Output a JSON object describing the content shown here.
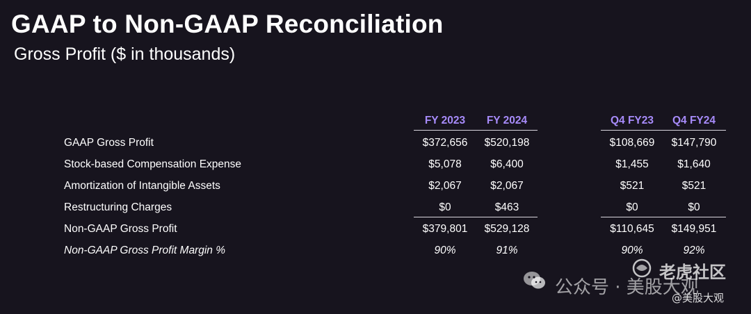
{
  "header": {
    "title": "GAAP to Non-GAAP Reconciliation",
    "subtitle": "Gross Profit ($ in thousands)"
  },
  "columns": [
    "FY 2023",
    "FY 2024",
    "Q4 FY23",
    "Q4 FY24"
  ],
  "rows": [
    {
      "label": "GAAP Gross Profit",
      "values": [
        "$372,656",
        "$520,198",
        "$108,669",
        "$147,790"
      ]
    },
    {
      "label": "Stock-based Compensation Expense",
      "values": [
        "$5,078",
        "$6,400",
        "$1,455",
        "$1,640"
      ]
    },
    {
      "label": "Amortization of Intangible Assets",
      "values": [
        "$2,067",
        "$2,067",
        "$521",
        "$521"
      ]
    },
    {
      "label": "Restructuring Charges",
      "values": [
        "$0",
        "$463",
        "$0",
        "$0"
      ]
    },
    {
      "label": "Non-GAAP Gross Profit",
      "values": [
        "$379,801",
        "$529,128",
        "$110,645",
        "$149,951"
      ]
    },
    {
      "label": "Non-GAAP Gross Profit Margin %",
      "values": [
        "90%",
        "91%",
        "90%",
        "92%"
      ]
    }
  ],
  "watermark": {
    "channel": "公众号 · 美股大观",
    "brand": "老虎社区",
    "handle": "@美股大观"
  },
  "colors": {
    "background": "#17141e",
    "header_accent": "#a78bfa"
  }
}
